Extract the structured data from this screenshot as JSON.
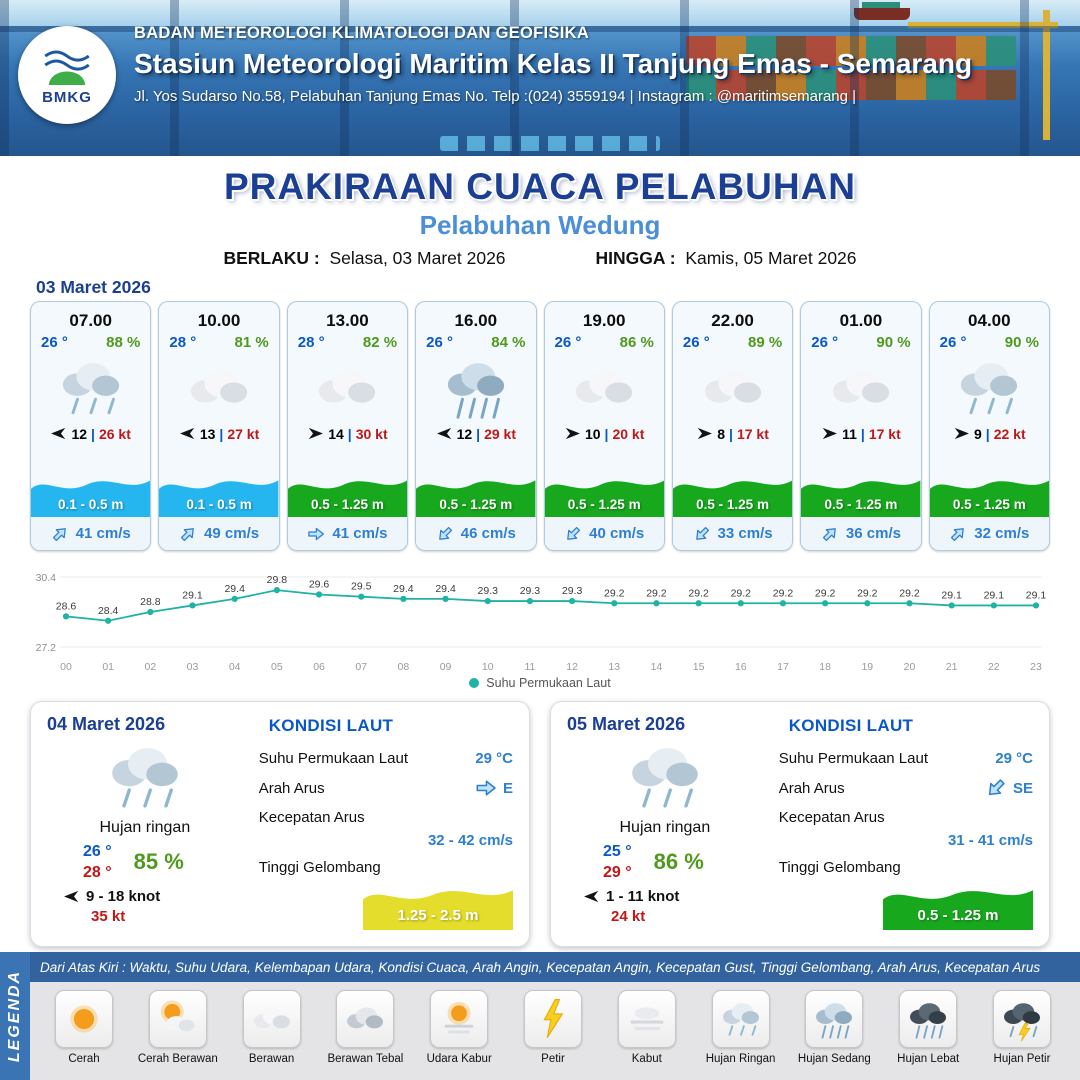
{
  "header": {
    "agency": "BADAN METEOROLOGI KLIMATOLOGI DAN GEOFISIKA",
    "station": "Stasiun Meteorologi Maritim Kelas II Tanjung Emas - Semarang",
    "address": "Jl. Yos Sudarso No.58, Pelabuhan Tanjung Emas No. Telp :(024) 3559194 | Instagram : @maritimsemarang |",
    "logo_label": "BMKG"
  },
  "title": {
    "main": "PRAKIRAAN CUACA PELABUHAN",
    "port": "Pelabuhan Wedung",
    "berlaku_label": "BERLAKU :",
    "berlaku_value": "Selasa, 03 Maret 2026",
    "hingga_label": "HINGGA :",
    "hingga_value": "Kamis, 05 Maret 2026"
  },
  "forecast_date": "03 Maret 2026",
  "hourly": [
    {
      "time": "07.00",
      "temp": "26 °",
      "humidity": "88 %",
      "icon": "rain-light",
      "wind_dir_deg": 180,
      "wind_speed": "12",
      "gust": "26 kt",
      "wave_height": "0.1 - 0.5 m",
      "wave_color": "#25b6ef",
      "current_dir_deg": -45,
      "current_speed": "41 cm/s"
    },
    {
      "time": "10.00",
      "temp": "28 °",
      "humidity": "81 %",
      "icon": "cloud",
      "wind_dir_deg": 180,
      "wind_speed": "13",
      "gust": "27 kt",
      "wave_height": "0.1 - 0.5 m",
      "wave_color": "#25b6ef",
      "current_dir_deg": -45,
      "current_speed": "49 cm/s"
    },
    {
      "time": "13.00",
      "temp": "28 °",
      "humidity": "82 %",
      "icon": "cloud",
      "wind_dir_deg": 0,
      "wind_speed": "14",
      "gust": "30 kt",
      "wave_height": "0.5 - 1.25 m",
      "wave_color": "#17a81d",
      "current_dir_deg": 0,
      "current_speed": "41 cm/s"
    },
    {
      "time": "16.00",
      "temp": "26 °",
      "humidity": "84 %",
      "icon": "rain-medium",
      "wind_dir_deg": 180,
      "wind_speed": "12",
      "gust": "29 kt",
      "wave_height": "0.5 - 1.25 m",
      "wave_color": "#17a81d",
      "current_dir_deg": 135,
      "current_speed": "46 cm/s"
    },
    {
      "time": "19.00",
      "temp": "26 °",
      "humidity": "86 %",
      "icon": "cloud",
      "wind_dir_deg": 0,
      "wind_speed": "10",
      "gust": "20 kt",
      "wave_height": "0.5 - 1.25 m",
      "wave_color": "#17a81d",
      "current_dir_deg": 135,
      "current_speed": "40 cm/s"
    },
    {
      "time": "22.00",
      "temp": "26 °",
      "humidity": "89 %",
      "icon": "cloud",
      "wind_dir_deg": 0,
      "wind_speed": "8",
      "gust": "17 kt",
      "wave_height": "0.5 - 1.25 m",
      "wave_color": "#17a81d",
      "current_dir_deg": 135,
      "current_speed": "33 cm/s"
    },
    {
      "time": "01.00",
      "temp": "26 °",
      "humidity": "90 %",
      "icon": "cloud",
      "wind_dir_deg": 0,
      "wind_speed": "11",
      "gust": "17 kt",
      "wave_height": "0.5 - 1.25 m",
      "wave_color": "#17a81d",
      "current_dir_deg": -45,
      "current_speed": "36 cm/s"
    },
    {
      "time": "04.00",
      "temp": "26 °",
      "humidity": "90 %",
      "icon": "rain-light",
      "wind_dir_deg": 0,
      "wind_speed": "9",
      "gust": "22 kt",
      "wave_height": "0.5 - 1.25 m",
      "wave_color": "#17a81d",
      "current_dir_deg": -45,
      "current_speed": "32 cm/s"
    }
  ],
  "chart_data": {
    "type": "line",
    "title": "Suhu Permukaan Laut",
    "legend": "Suhu Permukaan Laut",
    "legend_position": "bottom",
    "x": [
      "00",
      "01",
      "02",
      "03",
      "04",
      "05",
      "06",
      "07",
      "08",
      "09",
      "10",
      "11",
      "12",
      "13",
      "14",
      "15",
      "16",
      "17",
      "18",
      "19",
      "20",
      "21",
      "22",
      "23"
    ],
    "values": [
      28.6,
      28.4,
      28.8,
      29.1,
      29.4,
      29.8,
      29.6,
      29.5,
      29.4,
      29.4,
      29.3,
      29.3,
      29.3,
      29.2,
      29.2,
      29.2,
      29.2,
      29.2,
      29.2,
      29.2,
      29.2,
      29.1,
      29.1,
      29.1
    ],
    "ylim": [
      27.2,
      30.4
    ],
    "line_color": "#1fb3a4",
    "grid": false
  },
  "sea": {
    "title": "KONDISI LAUT",
    "labels": {
      "sst": "Suhu Permukaan Laut",
      "dir": "Arah Arus",
      "speed": "Kecepatan Arus",
      "wave": "Tinggi Gelombang"
    }
  },
  "daily": [
    {
      "date": "04 Maret 2026",
      "condition": "Hujan ringan",
      "icon": "rain-light",
      "temp_min": "26 °",
      "temp_max": "28 °",
      "humidity": "85 %",
      "wind_range": "9 - 18 knot",
      "wind_dir_deg": 180,
      "gust": "35 kt",
      "sst": "29 °C",
      "current_dir": "E",
      "current_dir_deg": 0,
      "current_speed": "32 - 42 cm/s",
      "wave_height": "1.25 - 2.5 m",
      "wave_color": "#e4dd2b"
    },
    {
      "date": "05 Maret 2026",
      "condition": "Hujan ringan",
      "icon": "rain-light",
      "temp_min": "25 °",
      "temp_max": "29 °",
      "humidity": "86 %",
      "wind_range": "1 - 11 knot",
      "wind_dir_deg": 180,
      "gust": "24 kt",
      "sst": "29 °C",
      "current_dir": "SE",
      "current_dir_deg": 135,
      "current_speed": "31 - 41 cm/s",
      "wave_height": "0.5 - 1.25 m",
      "wave_color": "#17a81d"
    }
  ],
  "legend": {
    "sidebar": "LEGENDA",
    "caption": "Dari Atas Kiri : Waktu, Suhu Udara, Kelembapan Udara, Kondisi Cuaca, Arah Angin, Kecepatan Angin, Kecepatan Gust, Tinggi Gelombang, Arah Arus, Kecepatan Arus",
    "items": [
      {
        "label": "Cerah",
        "icon": "sun"
      },
      {
        "label": "Cerah Berawan",
        "icon": "sun-cloud"
      },
      {
        "label": "Berawan",
        "icon": "cloud"
      },
      {
        "label": "Berawan Tebal",
        "icon": "cloud-thick"
      },
      {
        "label": "Udara Kabur",
        "icon": "haze"
      },
      {
        "label": "Petir",
        "icon": "lightning"
      },
      {
        "label": "Kabut",
        "icon": "fog"
      },
      {
        "label": "Hujan Ringan",
        "icon": "rain-light"
      },
      {
        "label": "Hujan Sedang",
        "icon": "rain-medium"
      },
      {
        "label": "Hujan Lebat",
        "icon": "rain-heavy"
      },
      {
        "label": "Hujan Petir",
        "icon": "storm"
      }
    ]
  },
  "colors": {
    "accent_blue": "#1b3f94",
    "port_blue": "#4b8fd7",
    "wave_cyan": "#25b6ef",
    "wave_green": "#17a81d",
    "gust_red": "#c21717",
    "humidity_green": "#4f9a1d",
    "current_blue": "#2e7fd2",
    "sst_teal": "#1fb3a4"
  }
}
